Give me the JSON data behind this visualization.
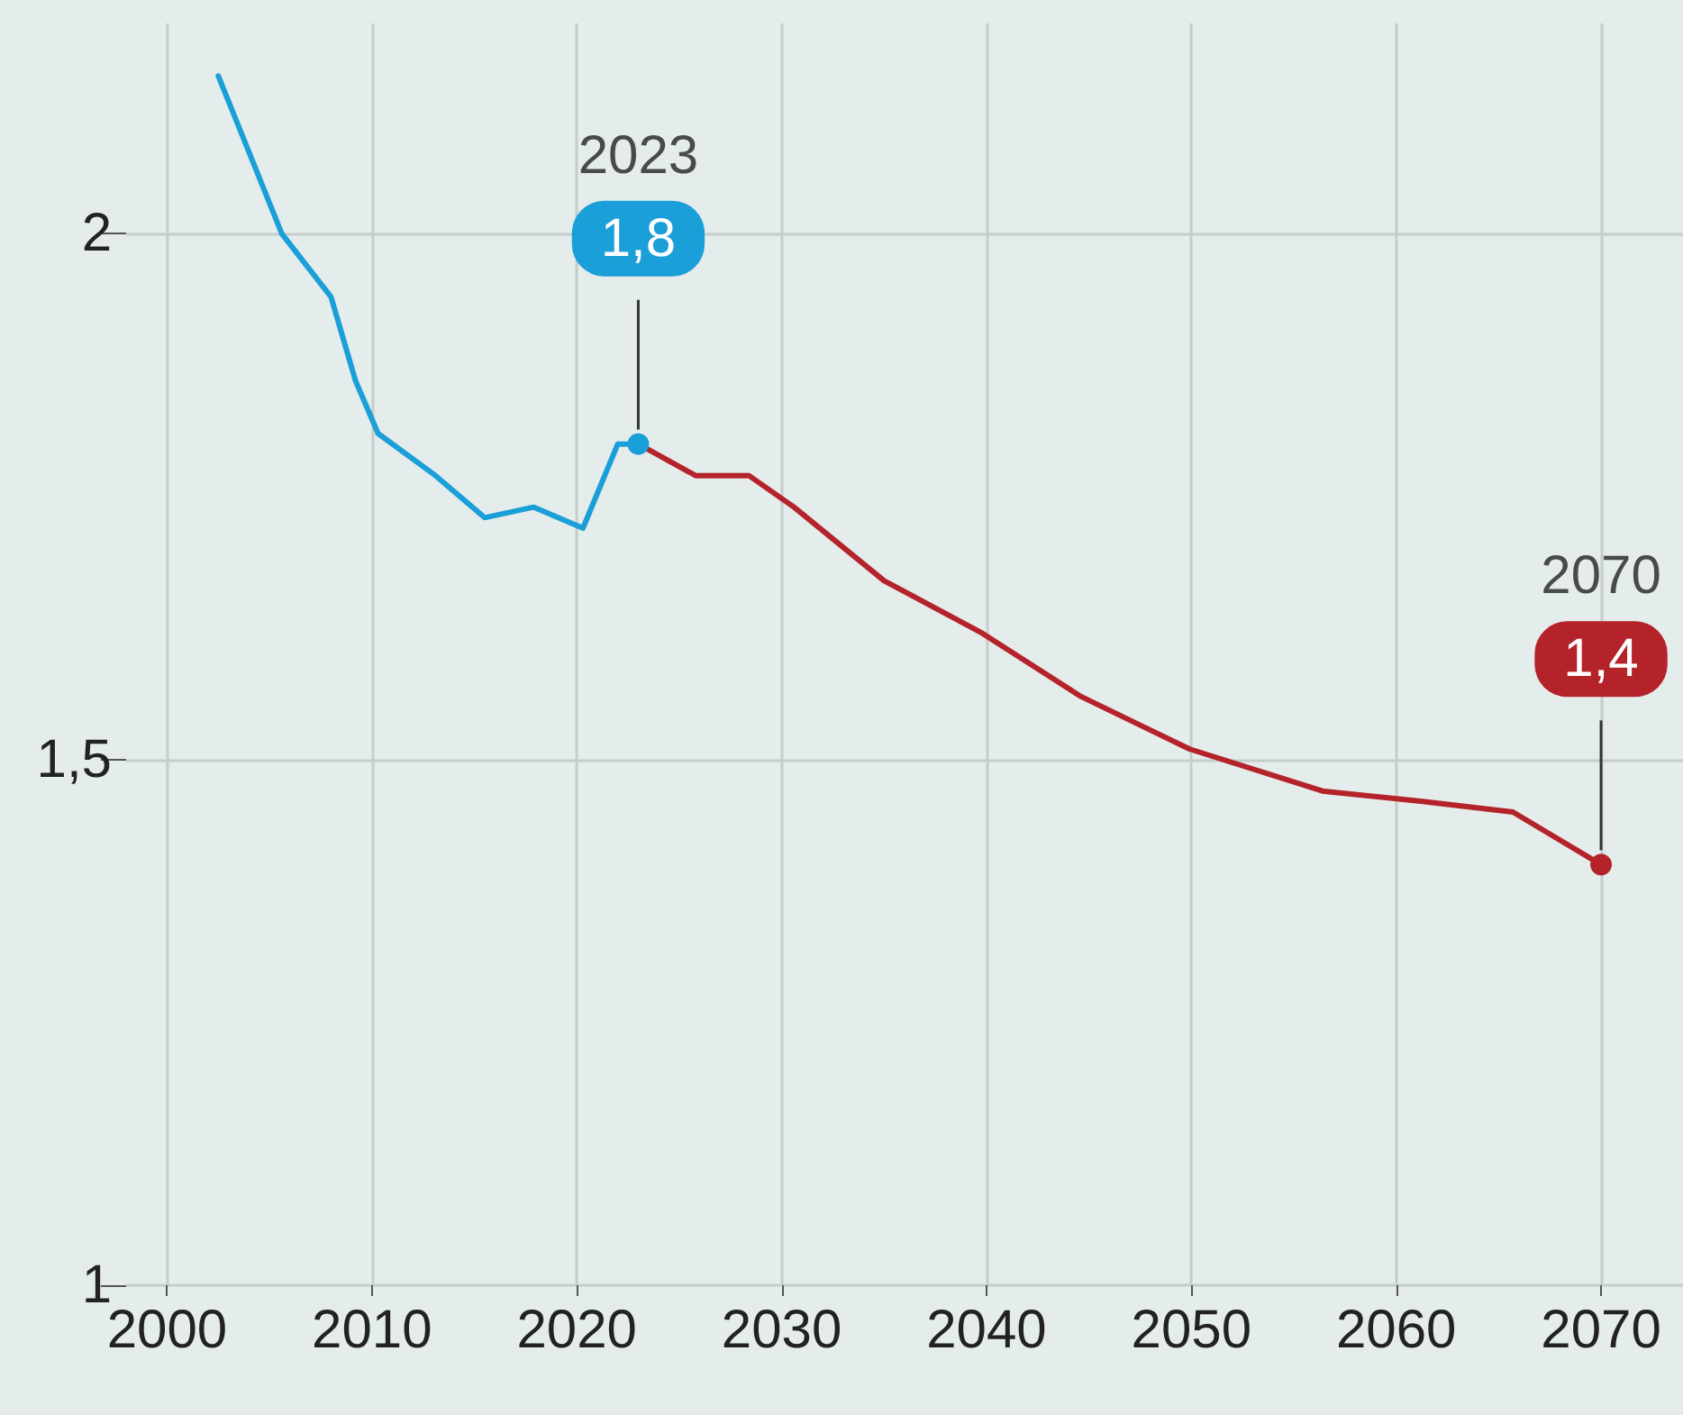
{
  "chart_data": {
    "type": "line",
    "xlim": [
      1998,
      2074
    ],
    "ylim": [
      1,
      2.2
    ],
    "xticks": [
      2000,
      2010,
      2020,
      2030,
      2040,
      2050,
      2060,
      2070
    ],
    "yticks": [
      1,
      {
        "value": 1.5,
        "label": "1,5"
      },
      2
    ],
    "grid": true,
    "line_style": "solid",
    "series": [
      {
        "color": "#1a9fd8",
        "x": [
          2002.5,
          2005.6,
          2008,
          2009.2,
          2010.3,
          2013.1,
          2015.5,
          2017.9,
          2020.3,
          2022,
          2023
        ],
        "values": [
          2.15,
          2.0,
          1.94,
          1.86,
          1.81,
          1.77,
          1.73,
          1.74,
          1.72,
          1.8,
          1.8
        ],
        "value_labels": [
          null,
          null,
          null,
          null,
          null,
          null,
          null,
          null,
          null,
          null,
          "1,8"
        ]
      },
      {
        "color": "#b5232a",
        "x": [
          2023,
          2025.8,
          2028.4,
          2030.6,
          2035,
          2039.8,
          2044.6,
          2049.9,
          2056.4,
          2061.3,
          2065.7,
          2070
        ],
        "values": [
          1.8,
          1.77,
          1.77,
          1.74,
          1.67,
          1.62,
          1.56,
          1.51,
          1.47,
          1.46,
          1.45,
          1.4
        ],
        "value_labels": [
          null,
          null,
          null,
          null,
          null,
          null,
          null,
          null,
          null,
          null,
          null,
          "1,4"
        ]
      }
    ],
    "annotations": [
      "2023",
      "2070"
    ]
  }
}
